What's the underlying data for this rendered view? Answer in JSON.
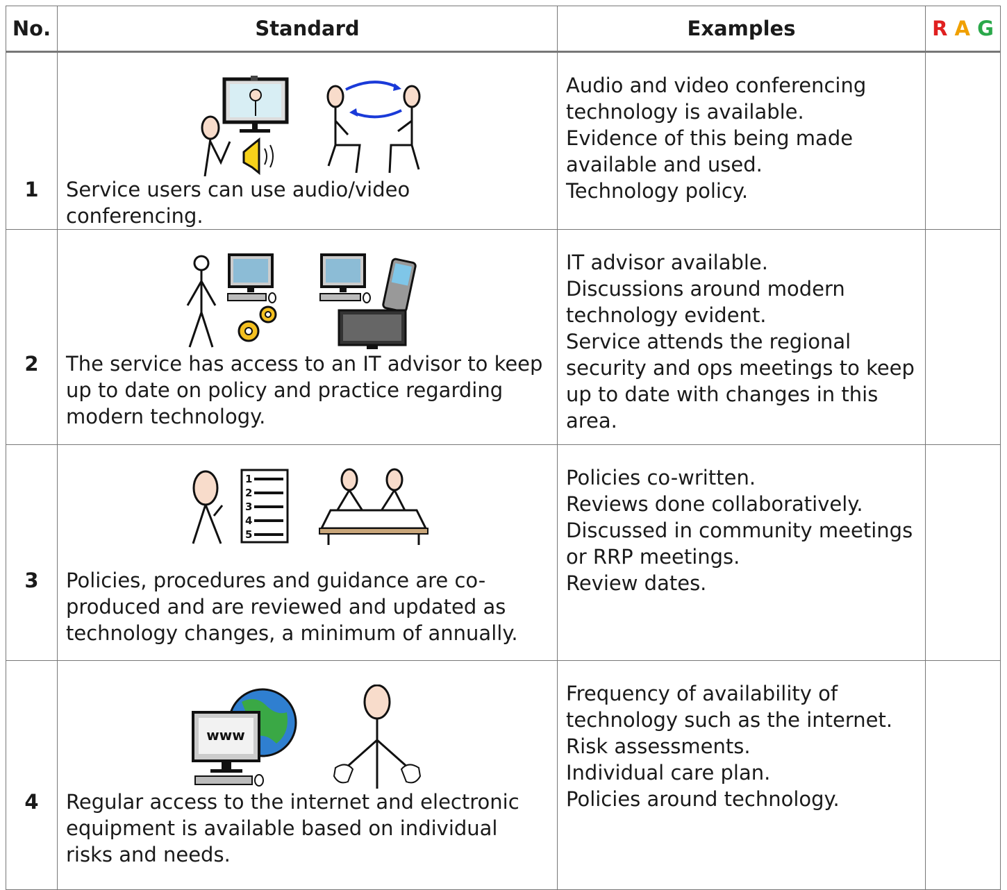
{
  "table": {
    "header": {
      "no": "No.",
      "standard": "Standard",
      "examples": "Examples",
      "rag": [
        "R",
        "A",
        "G"
      ]
    },
    "rows": [
      {
        "no": "1",
        "standard": "Service users can use audio/video conferencing.",
        "examples": [
          "Audio and video conferencing technology is available.",
          "Evidence of this being made available and used.",
          "Technology policy."
        ]
      },
      {
        "no": "2",
        "standard": "The service has access to an IT advisor to keep up to date on policy and practice regarding modern technology.",
        "examples": [
          "IT advisor available.",
          "Discussions around modern technology evident.",
          "Service attends the regional security and ops meetings to keep up to date with changes in this area."
        ]
      },
      {
        "no": "3",
        "standard": "Policies, procedures and guidance are co-produced and are reviewed and updated as technology changes, a minimum of annually.",
        "examples": [
          "Policies co-written.",
          "Reviews done collaboratively.",
          "Discussed in community meetings or RRP meetings.",
          "Review dates."
        ],
        "icon_text": [
          "1",
          "2",
          "3",
          "4",
          "5"
        ]
      },
      {
        "no": "4",
        "standard": "Regular access to the internet and electronic equipment is available based on individual risks and needs.",
        "examples": [
          "Frequency of availability of technology such as the internet.",
          "Risk assessments.",
          "Individual care plan.",
          "Policies around technology."
        ],
        "icon_text": "www"
      }
    ]
  }
}
